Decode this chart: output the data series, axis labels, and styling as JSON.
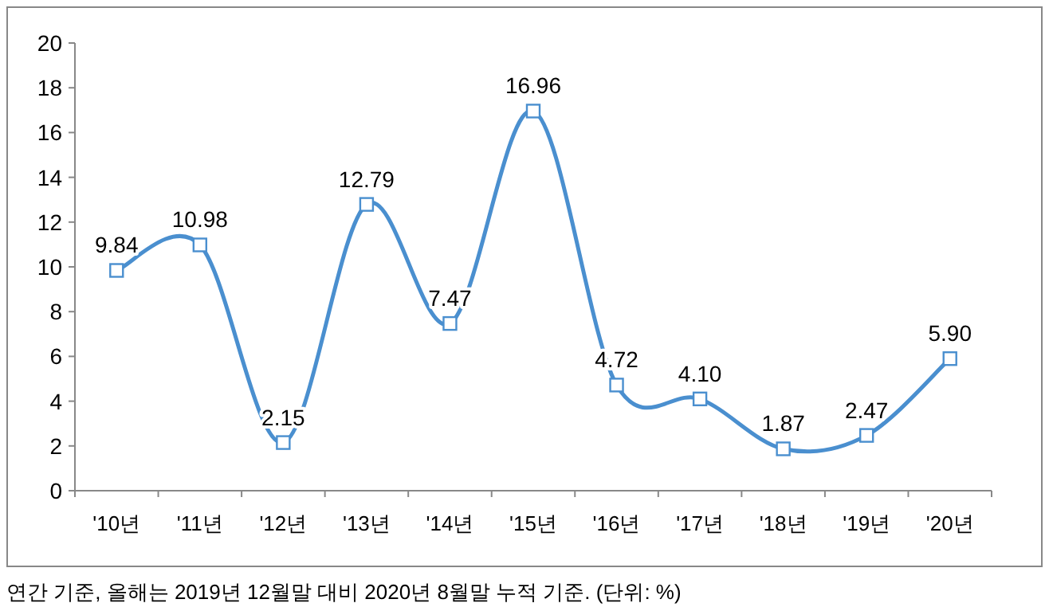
{
  "chart_data": {
    "type": "line",
    "categories": [
      "'10년",
      "'11년",
      "'12년",
      "'13년",
      "'14년",
      "'15년",
      "'16년",
      "'17년",
      "'18년",
      "'19년",
      "'20년"
    ],
    "series": [
      {
        "color": "#4a8fcf",
        "values": [
          9.84,
          10.98,
          2.15,
          12.79,
          7.47,
          16.96,
          4.72,
          4.1,
          1.87,
          2.47,
          5.9
        ],
        "value_labels": [
          "9.84",
          "10.98",
          "2.15",
          "12.79",
          "7.47",
          "16.96",
          "4.72",
          "4.10",
          "1.87",
          "2.47",
          "5.90"
        ]
      }
    ],
    "ylim": [
      0,
      20
    ],
    "yticks": [
      0,
      2,
      4,
      6,
      8,
      10,
      12,
      14,
      16,
      18,
      20
    ],
    "marker": "square",
    "annotations": [
      "연간 기준, 올해는 2019년 12월말 대비 2020년 8월말 누적 기준. (단위: %)"
    ]
  }
}
